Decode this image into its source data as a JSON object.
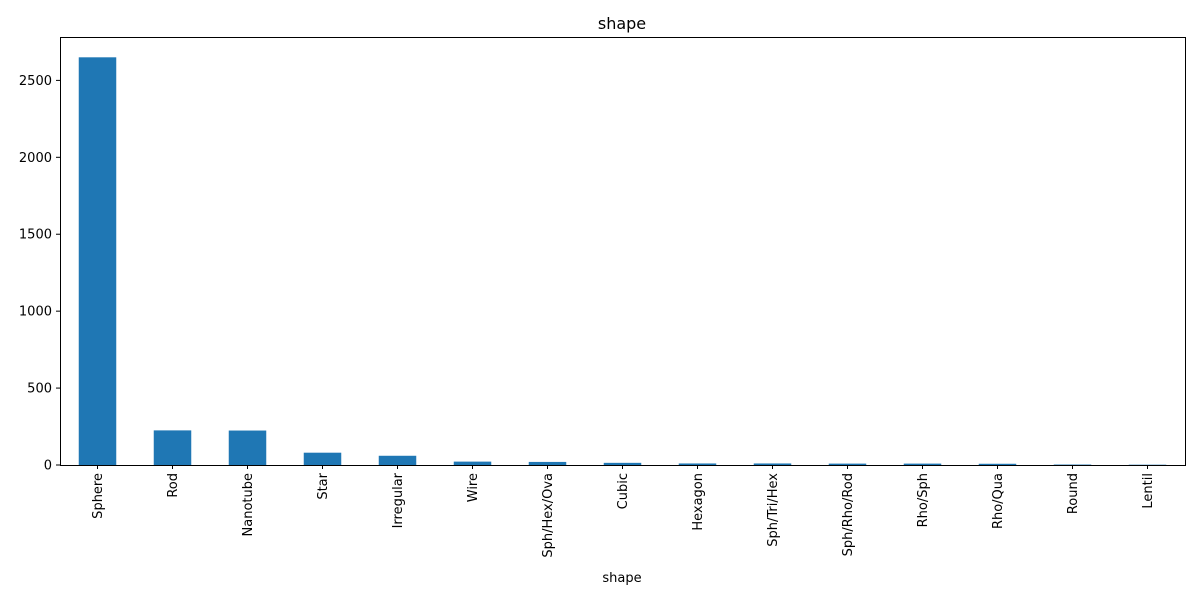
{
  "chart_data": {
    "type": "bar",
    "title": "shape",
    "xlabel": "shape",
    "ylabel": "",
    "categories": [
      "Sphere",
      "Rod",
      "Nanotube",
      "Star",
      "Irregular",
      "Wire",
      "Sph/Hex/Ova",
      "Cubic",
      "Hexagon",
      "Sph/Tri/Hex",
      "Sph/Rho/Rod",
      "Rho/Sph",
      "Rho/Qua",
      "Round",
      "Lentil"
    ],
    "values": [
      2650,
      225,
      224,
      80,
      60,
      22,
      20,
      14,
      10,
      10,
      9,
      9,
      8,
      3,
      2
    ],
    "ylim": [
      0,
      2782
    ],
    "yticks": [
      0,
      500,
      1000,
      1500,
      2000,
      2500
    ],
    "bar_color": "#1f77b4",
    "grid": false,
    "legend": false
  }
}
